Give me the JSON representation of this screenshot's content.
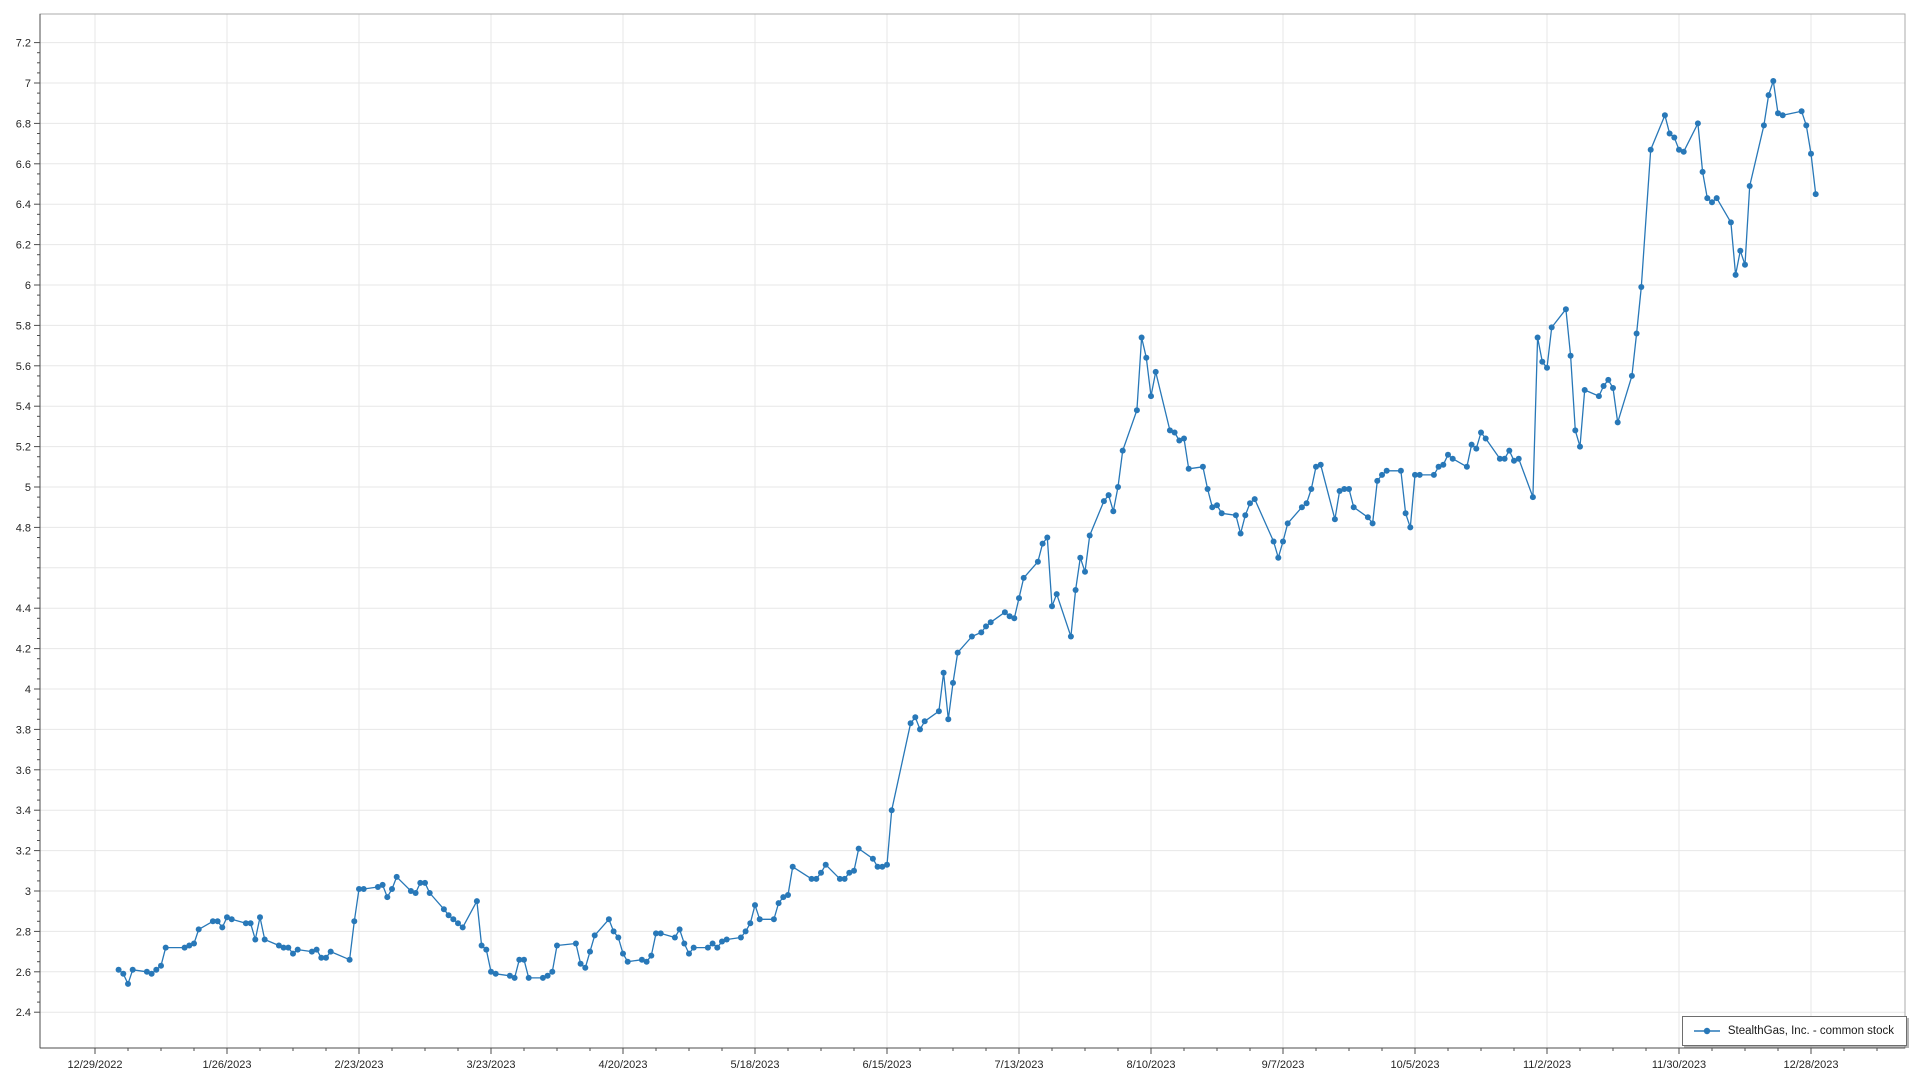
{
  "legend": {
    "label": "StealthGas, Inc. - common stock"
  },
  "chart_data": {
    "type": "line",
    "title": "",
    "xlabel": "",
    "ylabel": "",
    "grid": true,
    "legend_position": "bottom-right",
    "line_color": "#2878b8",
    "grid_color": "#e7e7e7",
    "axis_color": "#6b6b6b",
    "border_color": "#ababab",
    "marker": "circle",
    "y_axis": {
      "min": 2.22,
      "max": 7.34,
      "tick_start": 2.4,
      "tick_end": 7.2,
      "tick_step": 0.2,
      "minor_step": 0.05
    },
    "x_axis": {
      "start_date": "2022-12-29",
      "end_date": "2024-01-18",
      "major_tick_days": 28,
      "minor_tick_days": 7,
      "tick_labels": [
        "12/29/2022",
        "1/26/2023",
        "2/23/2023",
        "3/23/2023",
        "4/20/2023",
        "5/18/2023",
        "6/15/2023",
        "7/13/2023",
        "8/10/2023",
        "9/7/2023",
        "10/5/2023",
        "11/2/2023",
        "11/30/2023",
        "12/28/2023"
      ]
    },
    "series": [
      {
        "name": "StealthGas, Inc. - common stock",
        "color": "#2878b8",
        "dates": [
          "2023-01-03",
          "2023-01-04",
          "2023-01-05",
          "2023-01-06",
          "2023-01-09",
          "2023-01-10",
          "2023-01-11",
          "2023-01-12",
          "2023-01-13",
          "2023-01-17",
          "2023-01-18",
          "2023-01-19",
          "2023-01-20",
          "2023-01-23",
          "2023-01-24",
          "2023-01-25",
          "2023-01-26",
          "2023-01-27",
          "2023-01-30",
          "2023-01-31",
          "2023-02-01",
          "2023-02-02",
          "2023-02-03",
          "2023-02-06",
          "2023-02-07",
          "2023-02-08",
          "2023-02-09",
          "2023-02-10",
          "2023-02-13",
          "2023-02-14",
          "2023-02-15",
          "2023-02-16",
          "2023-02-17",
          "2023-02-21",
          "2023-02-22",
          "2023-02-23",
          "2023-02-24",
          "2023-02-27",
          "2023-02-28",
          "2023-03-01",
          "2023-03-02",
          "2023-03-03",
          "2023-03-06",
          "2023-03-07",
          "2023-03-08",
          "2023-03-09",
          "2023-03-10",
          "2023-03-13",
          "2023-03-14",
          "2023-03-15",
          "2023-03-16",
          "2023-03-17",
          "2023-03-20",
          "2023-03-21",
          "2023-03-22",
          "2023-03-23",
          "2023-03-24",
          "2023-03-27",
          "2023-03-28",
          "2023-03-29",
          "2023-03-30",
          "2023-03-31",
          "2023-04-03",
          "2023-04-04",
          "2023-04-05",
          "2023-04-06",
          "2023-04-10",
          "2023-04-11",
          "2023-04-12",
          "2023-04-13",
          "2023-04-14",
          "2023-04-17",
          "2023-04-18",
          "2023-04-19",
          "2023-04-20",
          "2023-04-21",
          "2023-04-24",
          "2023-04-25",
          "2023-04-26",
          "2023-04-27",
          "2023-04-28",
          "2023-05-01",
          "2023-05-02",
          "2023-05-03",
          "2023-05-04",
          "2023-05-05",
          "2023-05-08",
          "2023-05-09",
          "2023-05-10",
          "2023-05-11",
          "2023-05-12",
          "2023-05-15",
          "2023-05-16",
          "2023-05-17",
          "2023-05-18",
          "2023-05-19",
          "2023-05-22",
          "2023-05-23",
          "2023-05-24",
          "2023-05-25",
          "2023-05-26",
          "2023-05-30",
          "2023-05-31",
          "2023-06-01",
          "2023-06-02",
          "2023-06-05",
          "2023-06-06",
          "2023-06-07",
          "2023-06-08",
          "2023-06-09",
          "2023-06-12",
          "2023-06-13",
          "2023-06-14",
          "2023-06-15",
          "2023-06-16",
          "2023-06-20",
          "2023-06-21",
          "2023-06-22",
          "2023-06-23",
          "2023-06-26",
          "2023-06-27",
          "2023-06-28",
          "2023-06-29",
          "2023-06-30",
          "2023-07-03",
          "2023-07-05",
          "2023-07-06",
          "2023-07-07",
          "2023-07-10",
          "2023-07-11",
          "2023-07-12",
          "2023-07-13",
          "2023-07-14",
          "2023-07-17",
          "2023-07-18",
          "2023-07-19",
          "2023-07-20",
          "2023-07-21",
          "2023-07-24",
          "2023-07-25",
          "2023-07-26",
          "2023-07-27",
          "2023-07-28",
          "2023-07-31",
          "2023-08-01",
          "2023-08-02",
          "2023-08-03",
          "2023-08-04",
          "2023-08-07",
          "2023-08-08",
          "2023-08-09",
          "2023-08-10",
          "2023-08-11",
          "2023-08-14",
          "2023-08-15",
          "2023-08-16",
          "2023-08-17",
          "2023-08-18",
          "2023-08-21",
          "2023-08-22",
          "2023-08-23",
          "2023-08-24",
          "2023-08-25",
          "2023-08-28",
          "2023-08-29",
          "2023-08-30",
          "2023-08-31",
          "2023-09-01",
          "2023-09-05",
          "2023-09-06",
          "2023-09-07",
          "2023-09-08",
          "2023-09-11",
          "2023-09-12",
          "2023-09-13",
          "2023-09-14",
          "2023-09-15",
          "2023-09-18",
          "2023-09-19",
          "2023-09-20",
          "2023-09-21",
          "2023-09-22",
          "2023-09-25",
          "2023-09-26",
          "2023-09-27",
          "2023-09-28",
          "2023-09-29",
          "2023-10-02",
          "2023-10-03",
          "2023-10-04",
          "2023-10-05",
          "2023-10-06",
          "2023-10-09",
          "2023-10-10",
          "2023-10-11",
          "2023-10-12",
          "2023-10-13",
          "2023-10-16",
          "2023-10-17",
          "2023-10-18",
          "2023-10-19",
          "2023-10-20",
          "2023-10-23",
          "2023-10-24",
          "2023-10-25",
          "2023-10-26",
          "2023-10-27",
          "2023-10-30",
          "2023-10-31",
          "2023-11-01",
          "2023-11-02",
          "2023-11-03",
          "2023-11-06",
          "2023-11-07",
          "2023-11-08",
          "2023-11-09",
          "2023-11-10",
          "2023-11-13",
          "2023-11-14",
          "2023-11-15",
          "2023-11-16",
          "2023-11-17",
          "2023-11-20",
          "2023-11-21",
          "2023-11-22",
          "2023-11-24",
          "2023-11-27",
          "2023-11-28",
          "2023-11-29",
          "2023-11-30",
          "2023-12-01",
          "2023-12-04",
          "2023-12-05",
          "2023-12-06",
          "2023-12-07",
          "2023-12-08",
          "2023-12-11",
          "2023-12-12",
          "2023-12-13",
          "2023-12-14",
          "2023-12-15",
          "2023-12-18",
          "2023-12-19",
          "2023-12-20",
          "2023-12-21",
          "2023-12-22",
          "2023-12-26",
          "2023-12-27",
          "2023-12-28",
          "2023-12-29"
        ],
        "values": [
          2.61,
          2.59,
          2.54,
          2.61,
          2.6,
          2.59,
          2.61,
          2.63,
          2.72,
          2.72,
          2.73,
          2.74,
          2.81,
          2.85,
          2.85,
          2.82,
          2.87,
          2.86,
          2.84,
          2.84,
          2.76,
          2.87,
          2.76,
          2.73,
          2.72,
          2.72,
          2.69,
          2.71,
          2.7,
          2.71,
          2.67,
          2.67,
          2.7,
          2.66,
          2.85,
          3.01,
          3.01,
          3.02,
          3.03,
          2.97,
          3.01,
          3.07,
          3.0,
          2.99,
          3.04,
          3.04,
          2.99,
          2.91,
          2.88,
          2.86,
          2.84,
          2.82,
          2.95,
          2.73,
          2.71,
          2.6,
          2.59,
          2.58,
          2.57,
          2.66,
          2.66,
          2.57,
          2.57,
          2.58,
          2.6,
          2.73,
          2.74,
          2.64,
          2.62,
          2.7,
          2.78,
          2.86,
          2.8,
          2.77,
          2.69,
          2.65,
          2.66,
          2.65,
          2.68,
          2.79,
          2.79,
          2.77,
          2.81,
          2.74,
          2.69,
          2.72,
          2.72,
          2.74,
          2.72,
          2.75,
          2.76,
          2.77,
          2.8,
          2.84,
          2.93,
          2.86,
          2.86,
          2.94,
          2.97,
          2.98,
          3.12,
          3.06,
          3.06,
          3.09,
          3.13,
          3.06,
          3.06,
          3.09,
          3.1,
          3.21,
          3.16,
          3.12,
          3.12,
          3.13,
          3.4,
          3.83,
          3.86,
          3.8,
          3.84,
          3.89,
          4.08,
          3.85,
          4.03,
          4.18,
          4.26,
          4.28,
          4.31,
          4.33,
          4.38,
          4.36,
          4.35,
          4.45,
          4.55,
          4.63,
          4.72,
          4.75,
          4.41,
          4.47,
          4.26,
          4.49,
          4.65,
          4.58,
          4.76,
          4.93,
          4.96,
          4.88,
          5.0,
          5.18,
          5.38,
          5.74,
          5.64,
          5.45,
          5.57,
          5.28,
          5.27,
          5.23,
          5.24,
          5.09,
          5.1,
          4.99,
          4.9,
          4.91,
          4.87,
          4.86,
          4.77,
          4.86,
          4.92,
          4.94,
          4.73,
          4.65,
          4.73,
          4.82,
          4.9,
          4.92,
          4.99,
          5.1,
          5.11,
          4.84,
          4.98,
          4.99,
          4.99,
          4.9,
          4.85,
          4.82,
          5.03,
          5.06,
          5.08,
          5.08,
          4.87,
          4.8,
          5.06,
          5.06,
          5.06,
          5.1,
          5.11,
          5.16,
          5.14,
          5.1,
          5.21,
          5.19,
          5.27,
          5.24,
          5.14,
          5.14,
          5.18,
          5.13,
          5.14,
          4.95,
          5.74,
          5.62,
          5.59,
          5.79,
          5.88,
          5.65,
          5.28,
          5.2,
          5.48,
          5.45,
          5.5,
          5.53,
          5.49,
          5.32,
          5.55,
          5.76,
          5.99,
          6.67,
          6.84,
          6.75,
          6.73,
          6.67,
          6.66,
          6.8,
          6.56,
          6.43,
          6.41,
          6.43,
          6.31,
          6.05,
          6.17,
          6.1,
          6.49,
          6.79,
          6.94,
          7.01,
          6.85,
          6.84,
          6.86,
          6.79,
          6.65,
          6.45
        ]
      }
    ]
  }
}
